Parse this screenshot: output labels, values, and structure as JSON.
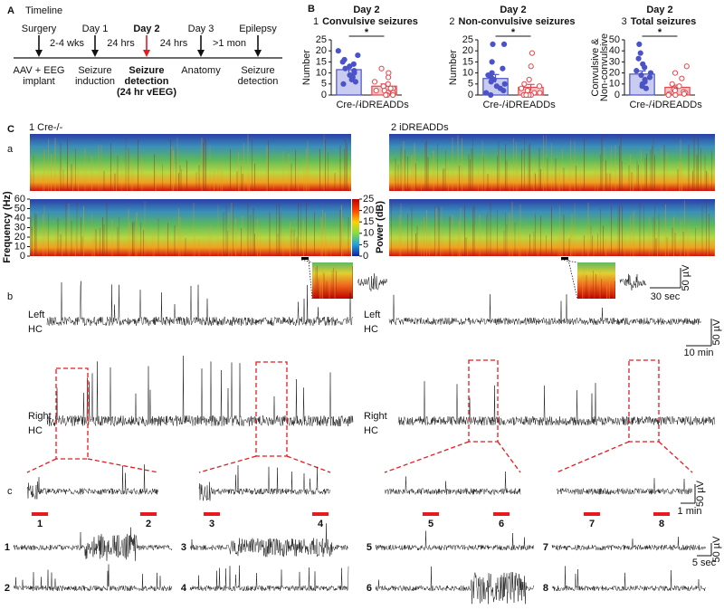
{
  "panel_a": {
    "letter": "A",
    "title": "Timeline",
    "events": [
      {
        "top": "Surgery",
        "bottom": [
          "AAV + EEG",
          "implant"
        ]
      },
      {
        "top": "Day 1",
        "bottom": [
          "Seizure",
          "induction"
        ]
      },
      {
        "top": "Day 2",
        "bottom": [
          "Seizure",
          "detection",
          "(24 hr vEEG)"
        ],
        "color": "#e8191f"
      },
      {
        "top": "Day 3",
        "bottom": [
          "Anatomy"
        ]
      },
      {
        "top": "Epilepsy",
        "bottom": [
          "Seizure",
          "detection"
        ]
      }
    ],
    "intervals": [
      "2-4 wks",
      "24 hrs",
      "24 hrs",
      ">1 mon"
    ]
  },
  "panel_b": {
    "letter": "B",
    "charts": [
      {
        "type": "bar",
        "number": "1",
        "day": "Day 2",
        "title": "Convulsive seizures",
        "ylabel": [
          "Number"
        ],
        "categories": [
          "Cre-/-",
          "iDREADDs"
        ],
        "values": [
          11.5,
          4
        ],
        "errors": [
          1.3,
          1.0
        ],
        "points": [
          [
            20,
            18,
            16,
            15,
            14,
            13,
            12,
            11,
            10,
            9,
            8,
            7,
            6,
            5
          ],
          [
            12,
            10,
            8,
            6,
            5,
            4,
            3,
            3,
            2,
            2,
            1,
            1,
            0,
            0,
            0
          ]
        ],
        "colors": [
          "#4b53c9",
          "#e0484d"
        ],
        "open_markers": [
          false,
          true
        ],
        "ylim": [
          0,
          25
        ],
        "yticks": [
          0,
          5,
          10,
          15,
          20,
          25
        ],
        "significance": "*"
      },
      {
        "type": "bar",
        "number": "2",
        "day": "Day 2",
        "title": "Non-convulsive seizures",
        "ylabel": [
          "Number"
        ],
        "categories": [
          "Cre-/-",
          "iDREADDs"
        ],
        "values": [
          7.5,
          3.5
        ],
        "errors": [
          1.8,
          1.3
        ],
        "points": [
          [
            23,
            23,
            15,
            12,
            10,
            9,
            8,
            7,
            6,
            5,
            4,
            3,
            2,
            1,
            0
          ],
          [
            19,
            13,
            7,
            5,
            4,
            3,
            2,
            2,
            1,
            1,
            0,
            0,
            0,
            0
          ]
        ],
        "colors": [
          "#4b53c9",
          "#e0484d"
        ],
        "open_markers": [
          false,
          true
        ],
        "ylim": [
          0,
          25
        ],
        "yticks": [
          0,
          5,
          10,
          15,
          20,
          25
        ],
        "significance": "*"
      },
      {
        "type": "bar",
        "number": "3",
        "day": "Day 2",
        "title": "Total seizures",
        "ylabel": [
          "Convulsive &",
          "Non-convulsive"
        ],
        "categories": [
          "Cre-/-",
          "iDREADDs"
        ],
        "values": [
          19,
          7
        ],
        "errors": [
          2.8,
          2.0
        ],
        "points": [
          [
            46,
            38,
            33,
            28,
            25,
            22,
            20,
            18,
            16,
            14,
            12,
            10,
            8,
            6
          ],
          [
            26,
            20,
            15,
            10,
            8,
            6,
            5,
            4,
            3,
            2,
            1,
            1,
            0,
            0
          ]
        ],
        "colors": [
          "#4b53c9",
          "#e0484d"
        ],
        "open_markers": [
          false,
          true
        ],
        "ylim": [
          0,
          50
        ],
        "yticks": [
          0,
          10,
          20,
          30,
          40,
          50
        ],
        "significance": "*"
      }
    ]
  },
  "panel_c": {
    "letter": "C",
    "groups": [
      "1 Cre-/-",
      "2 iDREADDs"
    ],
    "rows": [
      "a",
      "b",
      "c"
    ],
    "spectrogram": {
      "ylabel": "Frequency (Hz)",
      "ylim": [
        0,
        60
      ],
      "yticks": [
        0,
        10,
        20,
        30,
        40,
        50,
        60
      ],
      "colorbar_label": "Power (dB)",
      "colorbar_lim": [
        0,
        25
      ],
      "colorbar_ticks": [
        0,
        5,
        10,
        15,
        20,
        25
      ]
    },
    "channels": [
      [
        "Left",
        "HC"
      ],
      [
        "Right",
        "HC"
      ]
    ],
    "scale_bars": {
      "inset": [
        "50 µV",
        "30 sec"
      ],
      "traces": [
        "50 µV",
        "10 min"
      ],
      "segments": [
        "50 µV",
        "1 min"
      ],
      "zoom": [
        "50 µV",
        "5 sec"
      ]
    },
    "segments": [
      "1",
      "2",
      "3",
      "4",
      "5",
      "6",
      "7",
      "8"
    ]
  }
}
